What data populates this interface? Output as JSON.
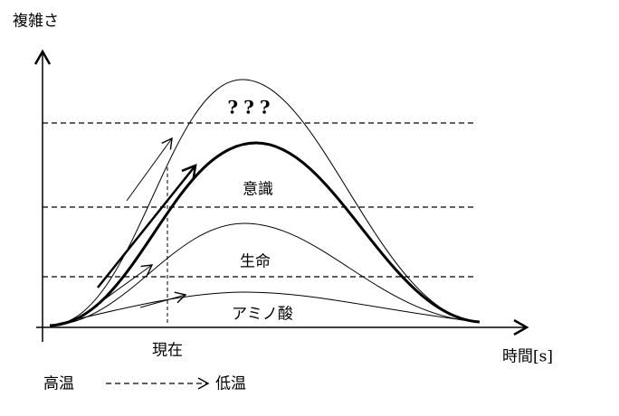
{
  "axis": {
    "y_label": "複雑さ",
    "x_label": "時間[s]"
  },
  "levels": [
    "???",
    "意識",
    "生命",
    "アミノ酸"
  ],
  "markers": {
    "now": "現在"
  },
  "legend": {
    "from": "高温",
    "to": "低温"
  }
}
